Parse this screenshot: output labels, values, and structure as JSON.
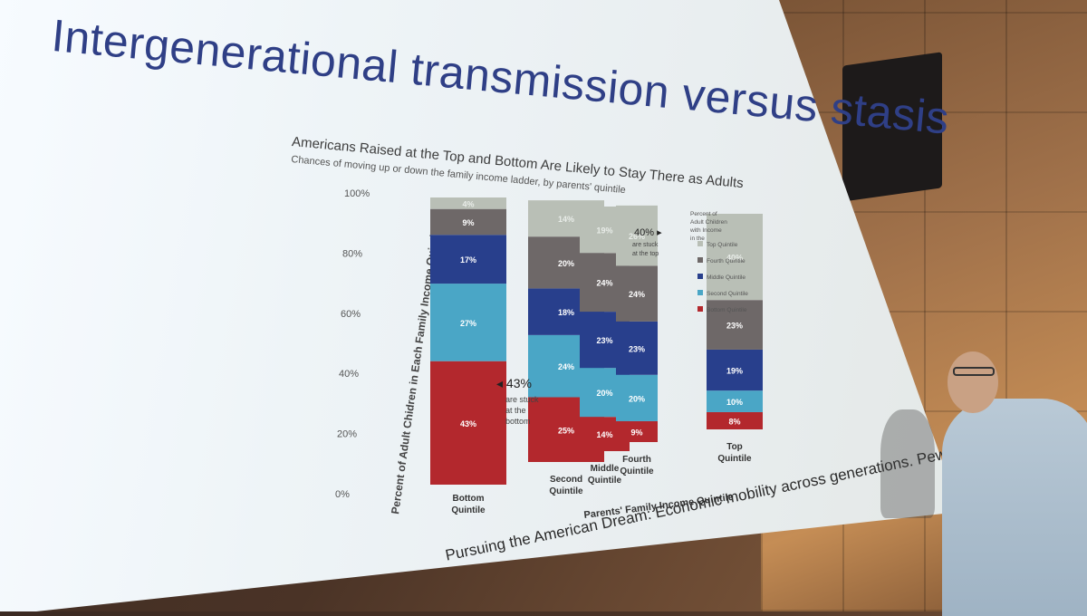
{
  "slide": {
    "title": "Intergenerational transmission versus stasis",
    "citation": "Pursuing the American Dream: Economic mobility across generations. Pew Charitable"
  },
  "chart_data": {
    "type": "bar",
    "stacked": true,
    "title": "Americans Raised at the Top and Bottom Are Likely to Stay There as Adults",
    "subtitle": "Chances of moving up or down the family income ladder, by parents' quintile",
    "xlabel": "Parents' Family Income Quintile",
    "ylabel": "Percent of Adult Chidren in Each Family Income Quintile",
    "ylim": [
      0,
      100
    ],
    "yticks": [
      "0%",
      "20%",
      "40%",
      "60%",
      "80%",
      "100%"
    ],
    "categories": [
      "Bottom Quintile",
      "Second Quintile",
      "Middle Quintile",
      "Fourth Quintile",
      "Top Quintile"
    ],
    "series": [
      {
        "name": "Bottom Quintile",
        "color": "#b3282d",
        "values": [
          43,
          25,
          14,
          9,
          8
        ]
      },
      {
        "name": "Second Quintile",
        "color": "#4aa6c6",
        "values": [
          27,
          24,
          20,
          20,
          10
        ]
      },
      {
        "name": "Middle Quintile",
        "color": "#283f8c",
        "values": [
          17,
          18,
          23,
          23,
          19
        ]
      },
      {
        "name": "Fourth Quintile",
        "color": "#6e6868",
        "values": [
          9,
          20,
          24,
          24,
          23
        ]
      },
      {
        "name": "Top Quintile",
        "color": "#b9bfb6",
        "values": [
          4,
          14,
          19,
          26,
          40
        ]
      }
    ],
    "legend_title": "Percent of Adult Children with Income in the",
    "legend_position": "right",
    "annotations": [
      {
        "big": "43%",
        "text": "are stuck at the bottom",
        "category": "Bottom Quintile"
      },
      {
        "big": "40%",
        "text": "are stuck at the top",
        "category": "Top Quintile"
      }
    ]
  }
}
